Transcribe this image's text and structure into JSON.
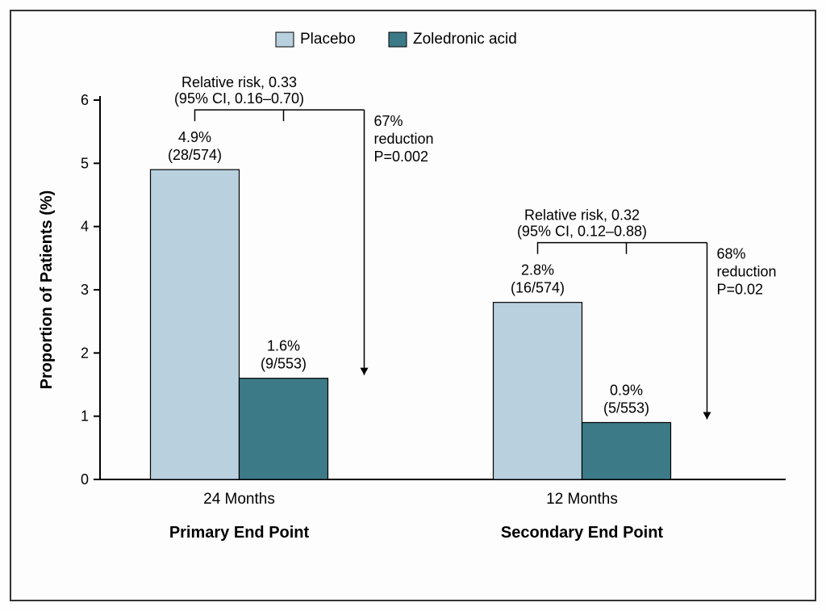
{
  "chart": {
    "type": "bar",
    "background_color": "#fdfdfd",
    "border_color": "#333333",
    "axis_color": "#000000",
    "axis_width": 2,
    "ylabel": "Proportion of Patients (%)",
    "ylim": [
      0,
      6
    ],
    "yticks": [
      0,
      1,
      2,
      3,
      4,
      5,
      6
    ],
    "tick_fontsize": 18,
    "label_fontsize": 20,
    "legend": {
      "items": [
        {
          "label": "Placebo",
          "color": "#b9d0df"
        },
        {
          "label": "Zoledronic acid",
          "color": "#3c7a87"
        }
      ]
    },
    "groups": [
      {
        "title": "Primary End Point",
        "category": "24 Months",
        "risk_line1": "Relative risk, 0.33",
        "risk_line2": "(95% CI, 0.16–0.70)",
        "reduction_line1": "67%",
        "reduction_line2": "reduction",
        "reduction_line3": "P=0.002",
        "bars": [
          {
            "series": "Placebo",
            "value": 4.9,
            "label_line1": "4.9%",
            "label_line2": "(28/574)",
            "color": "#b9d0df"
          },
          {
            "series": "Zoledronic acid",
            "value": 1.6,
            "label_line1": "1.6%",
            "label_line2": "(9/553)",
            "color": "#3c7a87"
          }
        ]
      },
      {
        "title": "Secondary End Point",
        "category": "12 Months",
        "risk_line1": "Relative risk, 0.32",
        "risk_line2": "(95% CI, 0.12–0.88)",
        "reduction_line1": "68%",
        "reduction_line2": "reduction",
        "reduction_line3": "P=0.02",
        "bars": [
          {
            "series": "Placebo",
            "value": 2.8,
            "label_line1": "2.8%",
            "label_line2": "(16/574)",
            "color": "#b9d0df"
          },
          {
            "series": "Zoledronic acid",
            "value": 0.9,
            "label_line1": "0.9%",
            "label_line2": "(5/553)",
            "color": "#3c7a87"
          }
        ]
      }
    ]
  }
}
